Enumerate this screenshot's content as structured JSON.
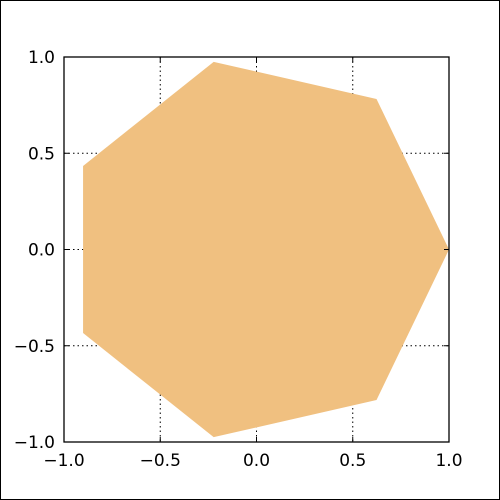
{
  "chart_data": {
    "type": "area",
    "title": "",
    "xlabel": "",
    "ylabel": "",
    "xlim": [
      -1.0,
      1.0
    ],
    "ylim": [
      -1.0,
      1.0
    ],
    "grid": true,
    "x_ticks": [
      -1.0,
      -0.5,
      0.0,
      0.5,
      1.0
    ],
    "y_ticks": [
      -1.0,
      -0.5,
      0.0,
      0.5,
      1.0
    ],
    "x_tick_labels": [
      "−1.0",
      "−0.5",
      "0.0",
      "0.5",
      "1.0"
    ],
    "y_tick_labels": [
      "−1.0",
      "−0.5",
      "0.0",
      "0.5",
      "1.0"
    ],
    "fill_color": "#f0c080",
    "series": [
      {
        "x": [
          1.0,
          0.6235,
          -0.2225,
          -0.901,
          -0.901,
          -0.2225,
          0.6235
        ],
        "y": [
          0.0,
          0.7818,
          0.9749,
          0.4339,
          -0.4339,
          -0.9749,
          -0.7818
        ]
      }
    ]
  }
}
